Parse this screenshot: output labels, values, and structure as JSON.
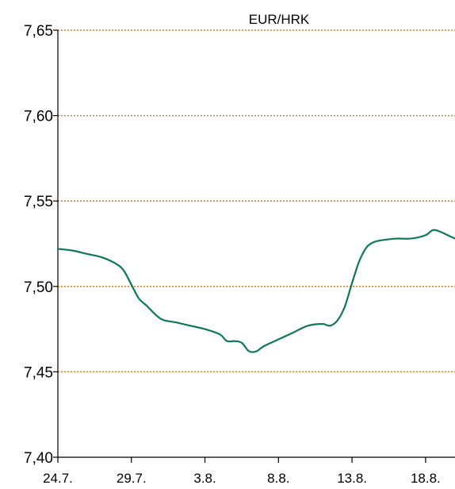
{
  "chart_data": {
    "type": "line",
    "title": "EUR/HRK",
    "xlabel": "",
    "ylabel": "",
    "ylim": [
      7.4,
      7.65
    ],
    "y_ticks": [
      "7,65",
      "7,60",
      "7,55",
      "7,50",
      "7,45",
      "7,40"
    ],
    "y_tick_values": [
      7.65,
      7.6,
      7.55,
      7.5,
      7.45,
      7.4
    ],
    "x_tick_labels": [
      "24.7.",
      "29.7.",
      "3.8.",
      "8.8.",
      "13.8.",
      "18.8."
    ],
    "x_tick_days": [
      0,
      5,
      10,
      15,
      20,
      25
    ],
    "grid": true,
    "series": [
      {
        "x": [
          0,
          1,
          2,
          3,
          4,
          4.5,
          5,
          5.5,
          6,
          7,
          8,
          9,
          10,
          11,
          11.5,
          12,
          12.5,
          13,
          13.5,
          14,
          15,
          16,
          17,
          18,
          18.5,
          19,
          19.5,
          20,
          20.5,
          21,
          21.5,
          22,
          23,
          24,
          25,
          25.5,
          26,
          26.5,
          27
        ],
        "values": [
          7.522,
          7.521,
          7.519,
          7.517,
          7.513,
          7.509,
          7.501,
          7.493,
          7.489,
          7.481,
          7.479,
          7.477,
          7.475,
          7.472,
          7.468,
          7.468,
          7.467,
          7.462,
          7.462,
          7.465,
          7.469,
          7.473,
          7.477,
          7.478,
          7.477,
          7.48,
          7.488,
          7.502,
          7.515,
          7.523,
          7.526,
          7.527,
          7.528,
          7.528,
          7.53,
          7.533,
          7.532,
          7.53,
          7.528
        ]
      }
    ],
    "colors": {
      "line": "#0d7a55",
      "grid": "#e87722",
      "axis": "#000000"
    }
  }
}
